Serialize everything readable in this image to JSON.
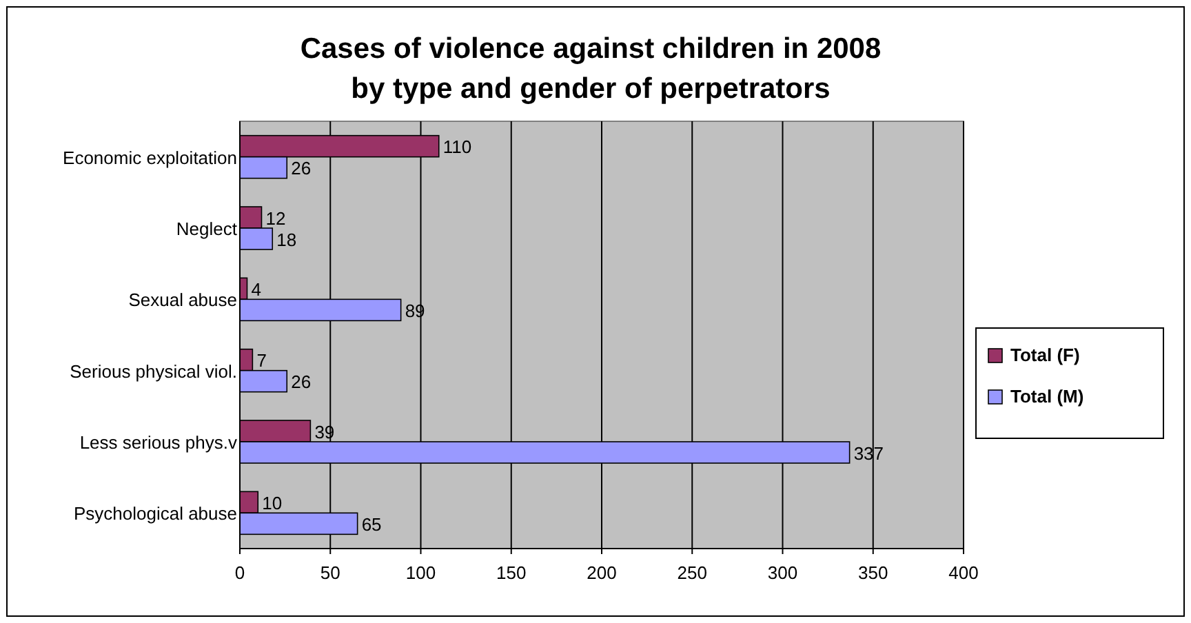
{
  "chart_data": {
    "type": "bar",
    "orientation": "horizontal",
    "title": "Cases of violence against children in 2008\nby type and gender of perpetrators",
    "categories": [
      "Economic exploitation",
      "Neglect",
      "Sexual abuse",
      "Serious physical viol.",
      "Less serious phys.v",
      "Psychological abuse"
    ],
    "series": [
      {
        "name": "Total (F)",
        "color": "#993366",
        "values": [
          110,
          12,
          4,
          7,
          39,
          10
        ]
      },
      {
        "name": "Total (M)",
        "color": "#9999ff",
        "values": [
          26,
          18,
          89,
          26,
          337,
          65
        ]
      }
    ],
    "xlim": [
      0,
      400
    ],
    "xticks": [
      0,
      50,
      100,
      150,
      200,
      250,
      300,
      350,
      400
    ],
    "grid": "x",
    "legend": "right",
    "data_labels": true
  }
}
